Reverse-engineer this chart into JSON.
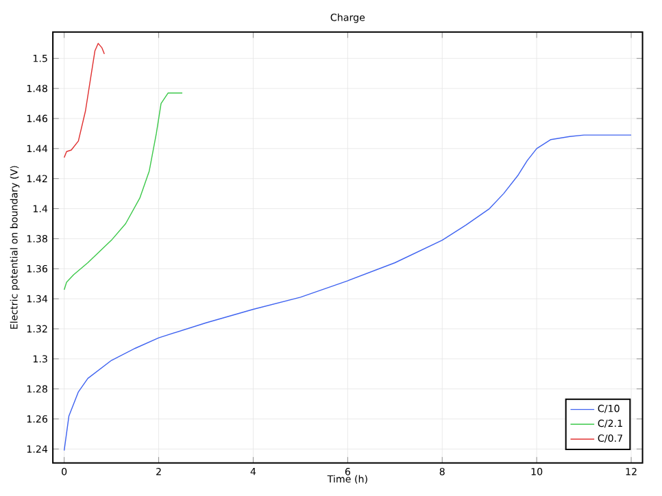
{
  "chart_data": {
    "type": "line",
    "title": "Charge",
    "xlabel": "Time (h)",
    "ylabel": "Electric potential on boundary (V)",
    "xlim": [
      -0.24,
      12.24
    ],
    "ylim": [
      1.2307,
      1.5176
    ],
    "xticks": [
      0,
      2,
      4,
      6,
      8,
      10,
      12
    ],
    "yticks": [
      1.24,
      1.26,
      1.28,
      1.3,
      1.32,
      1.34,
      1.36,
      1.38,
      1.4,
      1.42,
      1.44,
      1.46,
      1.48,
      1.5
    ],
    "grid": true,
    "legend": "bottom right",
    "marker": "none",
    "line_style": "solid",
    "series": [
      {
        "name": "C/10",
        "color": "#3f63f0",
        "x": [
          0,
          0.1,
          0.3,
          0.5,
          1,
          1.5,
          2,
          3,
          4,
          5,
          6,
          7,
          8,
          8.5,
          9,
          9.3,
          9.6,
          9.8,
          10,
          10.3,
          10.7,
          11,
          12
        ],
        "values": [
          1.239,
          1.262,
          1.278,
          1.287,
          1.299,
          1.307,
          1.314,
          1.324,
          1.333,
          1.341,
          1.352,
          1.364,
          1.379,
          1.389,
          1.4,
          1.41,
          1.422,
          1.432,
          1.44,
          1.446,
          1.448,
          1.449,
          1.449
        ]
      },
      {
        "name": "C/2.1",
        "color": "#3cc84a",
        "x": [
          0,
          0.05,
          0.2,
          0.5,
          1,
          1.3,
          1.6,
          1.8,
          1.95,
          2.05,
          2.2,
          2.5
        ],
        "values": [
          1.346,
          1.351,
          1.356,
          1.364,
          1.379,
          1.39,
          1.407,
          1.425,
          1.45,
          1.47,
          1.477,
          1.477
        ]
      },
      {
        "name": "C/0.7",
        "color": "#e03030",
        "x": [
          0,
          0.05,
          0.15,
          0.3,
          0.45,
          0.55,
          0.65,
          0.72,
          0.8,
          0.85
        ],
        "values": [
          1.434,
          1.438,
          1.439,
          1.445,
          1.465,
          1.485,
          1.505,
          1.51,
          1.507,
          1.503
        ]
      }
    ]
  }
}
